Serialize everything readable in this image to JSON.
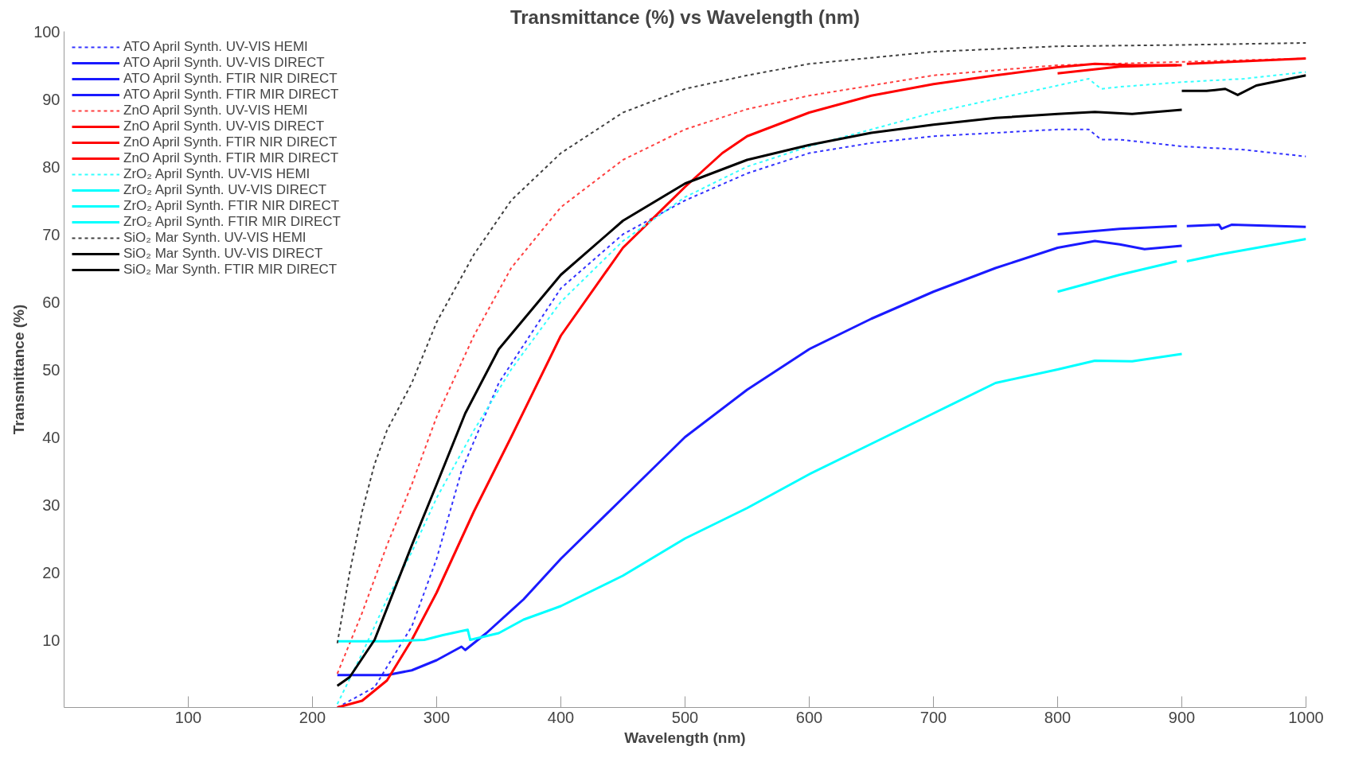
{
  "chart_data": {
    "type": "line",
    "title": "Transmittance (%) vs Wavelength (nm)",
    "xlabel": "Wavelength (nm)",
    "ylabel": "Transmittance (%)",
    "xlim": [
      0,
      1000
    ],
    "xticks": [
      100,
      200,
      300,
      400,
      500,
      600,
      700,
      800,
      900,
      1000
    ],
    "ylim": [
      0,
      100
    ],
    "yticks": [
      10,
      20,
      30,
      40,
      50,
      60,
      70,
      80,
      90,
      100
    ],
    "grid": false,
    "legend": "top left",
    "marker": "none",
    "series": [
      {
        "name": "ATO April Synth. UV-VIS HEMI",
        "color": "#3333ff",
        "line_style": "dashed",
        "x": [
          220,
          250,
          280,
          300,
          320,
          350,
          400,
          450,
          500,
          550,
          600,
          650,
          700,
          750,
          800,
          825,
          835,
          850,
          900,
          950,
          1000
        ],
        "values": [
          0,
          3,
          12,
          22,
          35,
          48,
          62,
          70,
          75,
          79,
          82,
          83.5,
          84.5,
          85,
          85.5,
          85.5,
          84,
          84,
          83,
          82.5,
          81.5
        ]
      },
      {
        "name": "ATO April Synth. UV-VIS DIRECT",
        "color": "#1a1aff",
        "line_style": "solid",
        "x": [
          220,
          260,
          280,
          300,
          320,
          323,
          340,
          370,
          400,
          450,
          500,
          550,
          600,
          650,
          700,
          750,
          800,
          830,
          850,
          870,
          900
        ],
        "values": [
          4.8,
          4.8,
          5.5,
          7,
          9,
          8.5,
          11,
          16,
          22,
          31,
          40,
          47,
          53,
          57.5,
          61.5,
          65,
          68,
          69,
          68.5,
          67.8,
          68.3
        ]
      },
      {
        "name": "ATO April Synth. FTIR NIR DIRECT",
        "color": "#1a1aff",
        "line_style": "solid",
        "x": [
          800,
          850,
          896
        ],
        "values": [
          70,
          70.8,
          71.2
        ]
      },
      {
        "name": "ATO April Synth. FTIR MIR DIRECT",
        "color": "#1a1aff",
        "line_style": "solid",
        "x": [
          904,
          930,
          932,
          940,
          1000
        ],
        "values": [
          71.2,
          71.4,
          70.8,
          71.4,
          71.1
        ]
      },
      {
        "name": "ZnO April Synth. UV-VIS HEMI",
        "color": "#ff4040",
        "line_style": "dashed",
        "x": [
          220,
          240,
          260,
          280,
          300,
          330,
          360,
          400,
          450,
          500,
          550,
          600,
          700,
          800,
          900,
          1000
        ],
        "values": [
          5,
          14,
          24,
          33,
          43,
          55,
          65,
          74,
          81,
          85.5,
          88.5,
          90.5,
          93.5,
          95,
          95.5,
          96
        ]
      },
      {
        "name": "ZnO April Synth. UV-VIS DIRECT",
        "color": "#ff0000",
        "line_style": "solid",
        "x": [
          220,
          240,
          260,
          280,
          300,
          330,
          360,
          400,
          450,
          500,
          530,
          550,
          600,
          650,
          700,
          750,
          800,
          830,
          860,
          900
        ],
        "values": [
          0,
          1,
          4,
          10,
          17,
          29,
          40,
          55,
          68,
          77,
          82,
          84.5,
          88,
          90.5,
          92.2,
          93.5,
          94.7,
          95.2,
          95,
          95
        ]
      },
      {
        "name": "ZnO April Synth. FTIR NIR DIRECT",
        "color": "#ff0000",
        "line_style": "solid",
        "x": [
          800,
          850,
          896
        ],
        "values": [
          93.8,
          94.8,
          95
        ]
      },
      {
        "name": "ZnO April Synth. FTIR MIR DIRECT",
        "color": "#ff0000",
        "line_style": "solid",
        "x": [
          904,
          950,
          1000
        ],
        "values": [
          95.2,
          95.6,
          96
        ]
      },
      {
        "name": "ZrO₂ April Synth. UV-VIS HEMI",
        "color": "#33ffff",
        "line_style": "dashed",
        "x": [
          220,
          240,
          260,
          280,
          300,
          330,
          360,
          400,
          450,
          500,
          550,
          600,
          650,
          700,
          750,
          800,
          825,
          835,
          850,
          900,
          950,
          1000
        ],
        "values": [
          0.5,
          8,
          16,
          23,
          31,
          41,
          50,
          60,
          69,
          75.5,
          80,
          83,
          85.5,
          88,
          90,
          92,
          93,
          91.5,
          91.8,
          92.5,
          93,
          94
        ]
      },
      {
        "name": "ZrO₂ April Synth. UV-VIS DIRECT",
        "color": "#00ffff",
        "line_style": "solid",
        "x": [
          220,
          260,
          290,
          305,
          325,
          327,
          350,
          370,
          400,
          450,
          500,
          550,
          600,
          650,
          700,
          750,
          800,
          830,
          860,
          900
        ],
        "values": [
          9.8,
          9.8,
          10,
          10.7,
          11.5,
          10,
          11,
          13,
          15,
          19.5,
          25,
          29.5,
          34.5,
          39,
          43.5,
          48,
          50,
          51.3,
          51.2,
          52.3
        ]
      },
      {
        "name": "ZrO₂ April Synth. FTIR NIR DIRECT",
        "color": "#00ffff",
        "line_style": "solid",
        "x": [
          800,
          850,
          896
        ],
        "values": [
          61.5,
          64,
          66
        ]
      },
      {
        "name": "ZrO₂ April Synth. FTIR MIR DIRECT",
        "color": "#00ffff",
        "line_style": "solid",
        "x": [
          904,
          930,
          1000
        ],
        "values": [
          66,
          67,
          69.3
        ]
      },
      {
        "name": "SiO₂ Mar Synth. UV-VIS HEMI",
        "color": "#404040",
        "line_style": "dashed",
        "x": [
          220,
          230,
          240,
          250,
          260,
          280,
          300,
          330,
          360,
          400,
          450,
          500,
          550,
          600,
          700,
          800,
          900,
          1000
        ],
        "values": [
          9.5,
          20,
          29,
          36,
          41,
          48,
          57,
          67,
          75,
          82,
          88,
          91.5,
          93.5,
          95.2,
          97,
          97.8,
          98,
          98.3
        ]
      },
      {
        "name": "SiO₂ Mar Synth. UV-VIS DIRECT",
        "color": "#000000",
        "line_style": "solid",
        "x": [
          220,
          230,
          250,
          280,
          300,
          323,
          350,
          400,
          450,
          500,
          550,
          600,
          650,
          700,
          750,
          800,
          830,
          860,
          900
        ],
        "values": [
          3.2,
          4.5,
          10,
          24,
          33,
          43.5,
          53,
          64,
          72,
          77.5,
          81,
          83.2,
          85,
          86.2,
          87.2,
          87.8,
          88.1,
          87.8,
          88.4
        ]
      },
      {
        "name": "SiO₂ Mar Synth. FTIR MIR DIRECT",
        "color": "#000000",
        "line_style": "solid",
        "x": [
          900,
          920,
          935,
          945,
          960,
          1000
        ],
        "values": [
          91.2,
          91.2,
          91.5,
          90.6,
          92,
          93.5
        ]
      }
    ]
  }
}
